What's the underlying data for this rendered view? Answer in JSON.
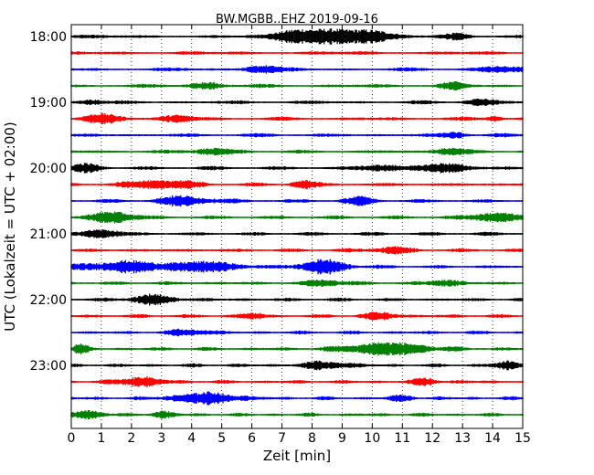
{
  "chart_data": {
    "type": "line",
    "title": "BW.MGBB..EHZ 2019-09-16",
    "xlabel": "Zeit  [min]",
    "ylabel": "UTC (Lokalzeit = UTC + 02:00)",
    "xlim": [
      0,
      15
    ],
    "x_ticks": [
      "0",
      "1",
      "2",
      "3",
      "4",
      "5",
      "6",
      "7",
      "8",
      "9",
      "10",
      "11",
      "12",
      "13",
      "14",
      "15"
    ],
    "y_ticks": [
      "18:00",
      "19:00",
      "20:00",
      "21:00",
      "22:00",
      "23:00"
    ],
    "grid": "vertical dotted at each minute",
    "series_colors": [
      "#000000",
      "#ff0000",
      "#0000ff",
      "#008000"
    ],
    "trace_count": 24,
    "trace_interval_min": 15
  }
}
